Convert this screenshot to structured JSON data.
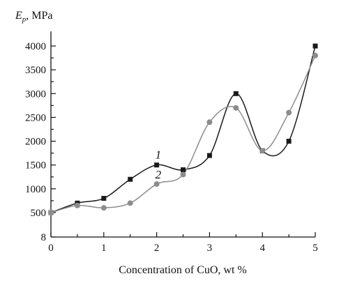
{
  "chart_data": {
    "type": "line",
    "title": "",
    "xlabel": "Concentration of CuO, wt %",
    "ylabel_main": "E",
    "ylabel_sub": "p",
    "ylabel_unit": ", MPa",
    "xlim": [
      0,
      5
    ],
    "ylim": [
      8,
      4000
    ],
    "x_ticks": [
      0,
      1,
      2,
      3,
      4,
      5
    ],
    "x_tick_labels": [
      "0",
      "1",
      "2",
      "3",
      "4",
      "5"
    ],
    "y_ticks": [
      8,
      500,
      1000,
      1500,
      2000,
      2500,
      3000,
      3500,
      4000
    ],
    "y_tick_labels": [
      "8",
      "500",
      "1000",
      "1500",
      "2000",
      "2500",
      "3000",
      "3500",
      "4000"
    ],
    "grid": false,
    "legend": "none",
    "series": [
      {
        "name": "1",
        "color": "#1a1a1a",
        "marker": "square",
        "x": [
          0,
          0.5,
          1,
          1.5,
          2,
          2.5,
          3,
          3.5,
          4,
          4.5,
          5
        ],
        "y": [
          500,
          700,
          800,
          1200,
          1500,
          1400,
          1700,
          3000,
          1800,
          2000,
          4000
        ]
      },
      {
        "name": "2",
        "color": "#8c8c8c",
        "marker": "circle",
        "x": [
          0,
          0.5,
          1,
          1.5,
          2,
          2.5,
          3,
          3.5,
          4,
          4.5,
          5
        ],
        "y": [
          500,
          650,
          600,
          700,
          1100,
          1300,
          2400,
          2700,
          1800,
          2600,
          3800
        ]
      }
    ]
  }
}
